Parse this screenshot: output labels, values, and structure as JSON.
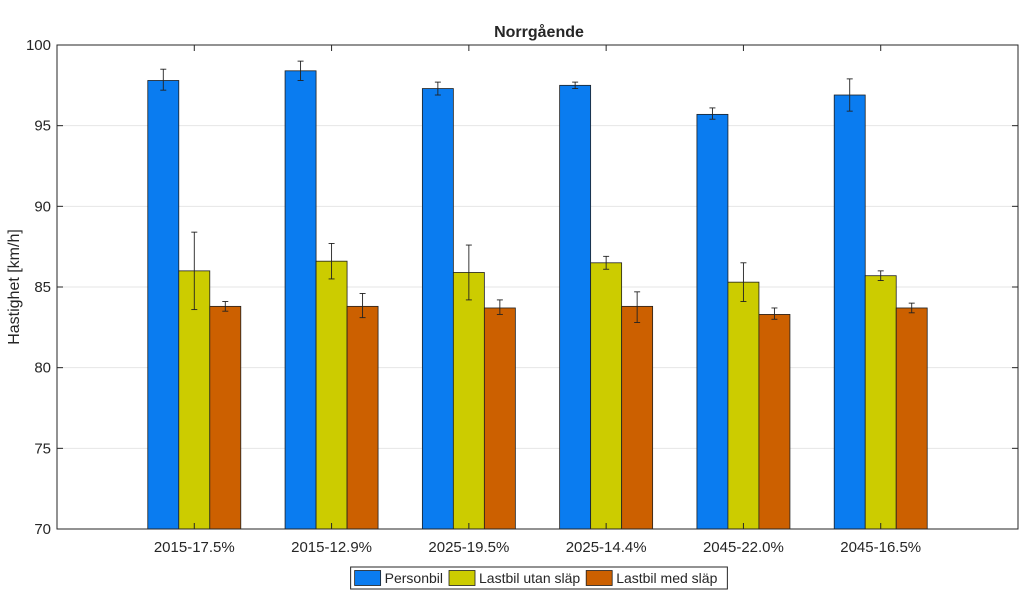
{
  "chart_data": {
    "type": "bar",
    "title": "Norrgående",
    "xlabel": "",
    "ylabel": "Hastighet [km/h]",
    "ylim": [
      70,
      100
    ],
    "yticks": [
      70,
      75,
      80,
      85,
      90,
      95,
      100
    ],
    "grid": true,
    "legend_position": "bottom",
    "categories": [
      "2015-17.5%",
      "2015-12.9%",
      "2025-19.5%",
      "2025-14.4%",
      "2045-22.0%",
      "2045-16.5%"
    ],
    "series": [
      {
        "name": "Personbil",
        "color": "#0a7cf0",
        "values": [
          97.8,
          98.4,
          97.3,
          97.5,
          95.7,
          96.9
        ],
        "err_low": [
          97.2,
          97.8,
          96.9,
          97.3,
          95.4,
          95.9
        ],
        "err_high": [
          98.5,
          99.0,
          97.7,
          97.7,
          96.1,
          97.9
        ]
      },
      {
        "name": "Lastbil utan släp",
        "color": "#cccc00",
        "values": [
          86.0,
          86.6,
          85.9,
          86.5,
          85.3,
          85.7
        ],
        "err_low": [
          83.6,
          85.5,
          84.2,
          86.1,
          84.1,
          85.4
        ],
        "err_high": [
          88.4,
          87.7,
          87.6,
          86.9,
          86.5,
          86.0
        ]
      },
      {
        "name": "Lastbil med släp",
        "color": "#cc6000",
        "values": [
          83.8,
          83.8,
          83.7,
          83.8,
          83.3,
          83.7
        ],
        "err_low": [
          83.5,
          83.1,
          83.3,
          82.8,
          83.0,
          83.4
        ],
        "err_high": [
          84.1,
          84.6,
          84.2,
          84.7,
          83.7,
          84.0
        ]
      }
    ]
  }
}
